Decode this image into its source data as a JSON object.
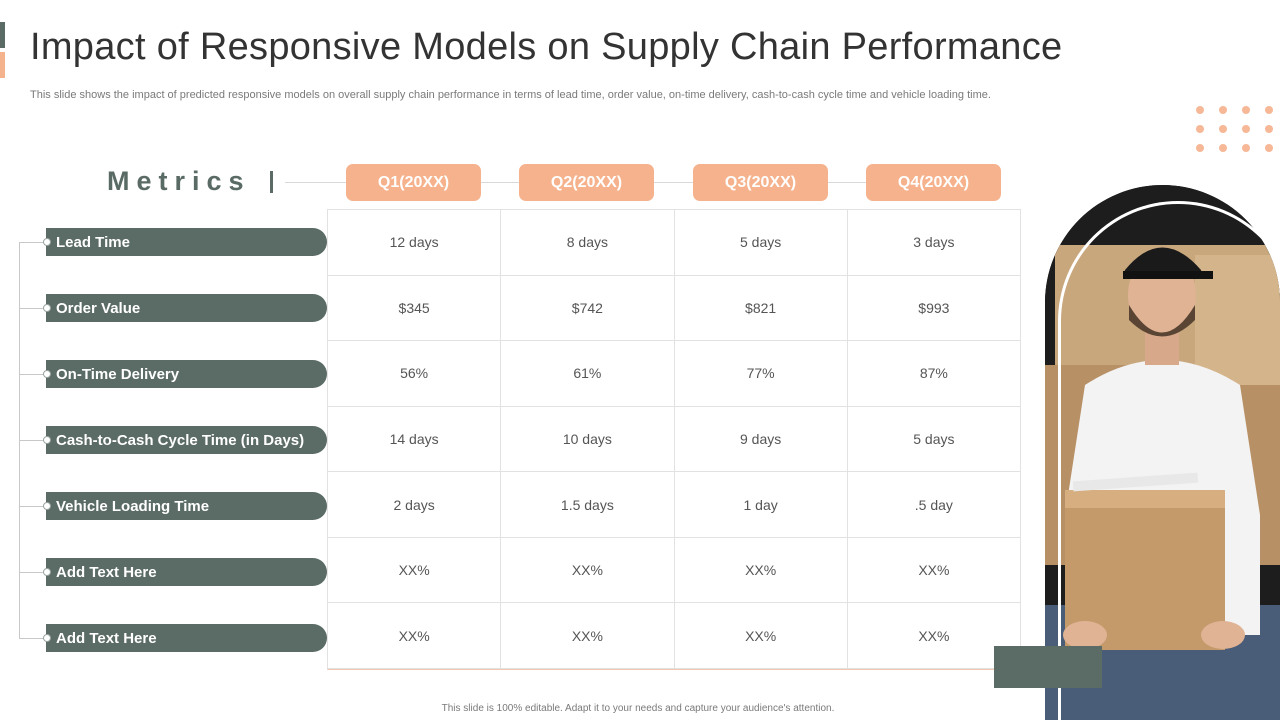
{
  "title": "Impact of Responsive Models on Supply Chain Performance",
  "subtitle": "This slide shows the impact of predicted responsive models on overall supply chain performance in terms of lead time, order value,  on-time delivery, cash-to-cash cycle time and vehicle loading time.",
  "metrics_label": "Metrics",
  "quarters": [
    "Q1(20XX)",
    "Q2(20XX)",
    "Q3(20XX)",
    "Q4(20XX)"
  ],
  "rows": [
    {
      "label": "Lead Time",
      "values": [
        "12 days",
        "8 days",
        "5 days",
        "3 days"
      ]
    },
    {
      "label": "Order Value",
      "values": [
        "$345",
        "$742",
        "$821",
        "$993"
      ]
    },
    {
      "label": "On-Time Delivery",
      "values": [
        "56%",
        "61%",
        "77%",
        "87%"
      ]
    },
    {
      "label": "Cash-to-Cash Cycle Time (in Days)",
      "values": [
        "14 days",
        "10 days",
        "9 days",
        "5 days"
      ]
    },
    {
      "label": "Vehicle Loading Time",
      "values": [
        "2 days",
        "1.5 days",
        "1 day",
        ".5 day"
      ]
    },
    {
      "label": "Add Text Here",
      "values": [
        "XX%",
        "XX%",
        "XX%",
        "XX%"
      ]
    },
    {
      "label": "Add Text Here",
      "values": [
        "XX%",
        "XX%",
        "XX%",
        "XX%"
      ]
    }
  ],
  "footer": "This slide is 100% editable.  Adapt it to your needs and capture your audience's attention.",
  "colors": {
    "accent_green": "#5b6b65",
    "accent_orange": "#f6b28c",
    "title_text": "#333333"
  },
  "image_description_icon": "delivery-man-photo"
}
